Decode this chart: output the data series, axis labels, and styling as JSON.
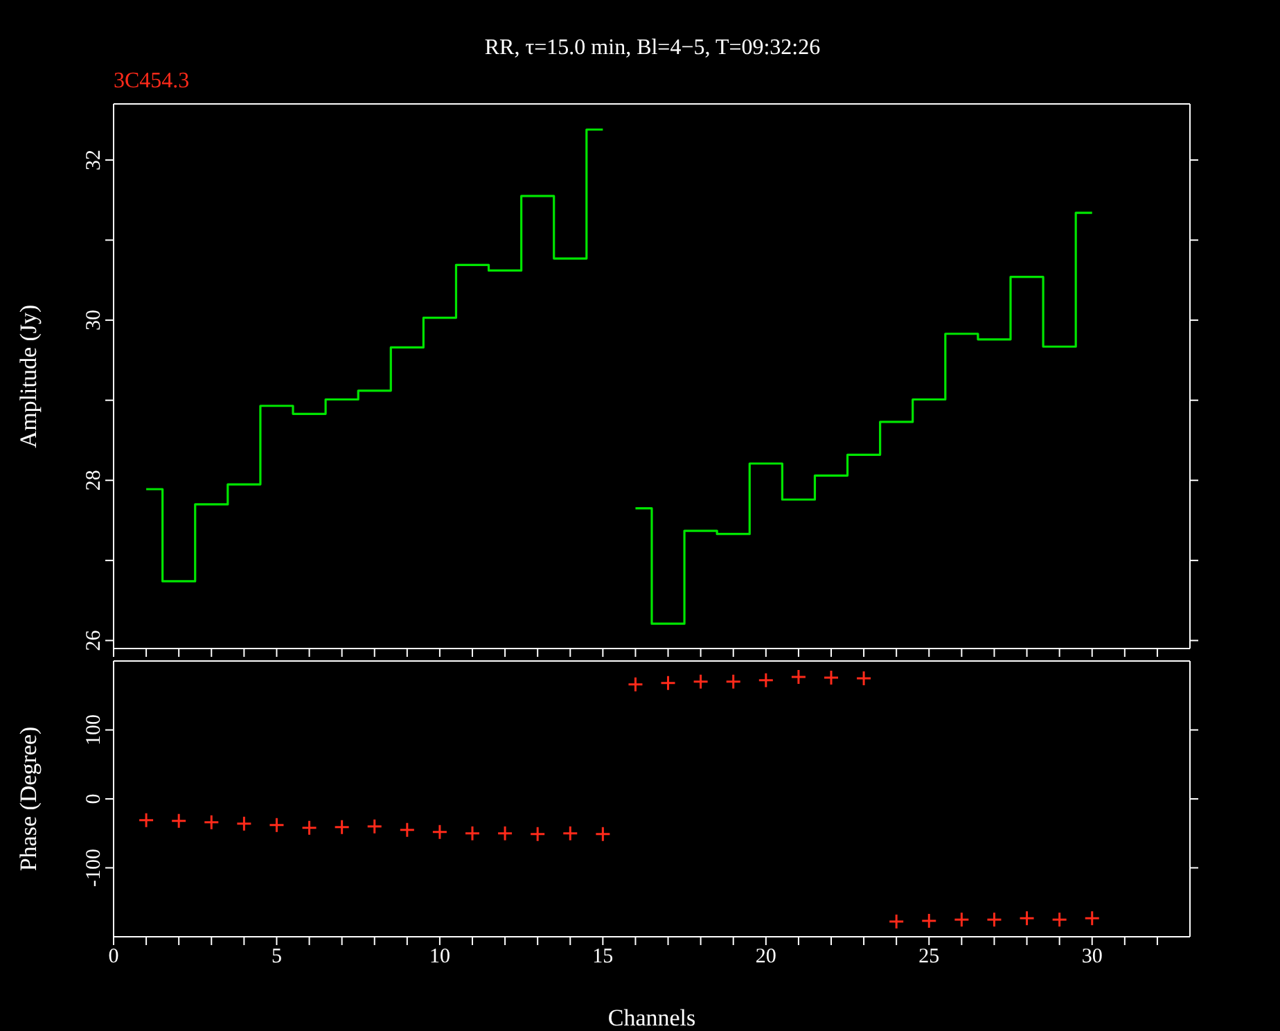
{
  "chart_data": [
    {
      "type": "step",
      "title": "RR, τ=15.0 min, Bl=4−5, T=09:32:26",
      "subtitle": "3C454.3",
      "ylabel": "Amplitude (Jy)",
      "xlim": [
        0,
        33
      ],
      "xticks": [
        {
          "value": 0,
          "label": null
        },
        {
          "value": 1,
          "label": null
        },
        {
          "value": 2,
          "label": null
        },
        {
          "value": 3,
          "label": null
        },
        {
          "value": 4,
          "label": null
        },
        {
          "value": 5,
          "label": null
        },
        {
          "value": 6,
          "label": null
        },
        {
          "value": 7,
          "label": null
        },
        {
          "value": 8,
          "label": null
        },
        {
          "value": 9,
          "label": null
        },
        {
          "value": 10,
          "label": null
        },
        {
          "value": 11,
          "label": null
        },
        {
          "value": 12,
          "label": null
        },
        {
          "value": 13,
          "label": null
        },
        {
          "value": 14,
          "label": null
        },
        {
          "value": 15,
          "label": null
        },
        {
          "value": 16,
          "label": null
        },
        {
          "value": 17,
          "label": null
        },
        {
          "value": 18,
          "label": null
        },
        {
          "value": 19,
          "label": null
        },
        {
          "value": 20,
          "label": null
        },
        {
          "value": 21,
          "label": null
        },
        {
          "value": 22,
          "label": null
        },
        {
          "value": 23,
          "label": null
        },
        {
          "value": 24,
          "label": null
        },
        {
          "value": 25,
          "label": null
        },
        {
          "value": 26,
          "label": null
        },
        {
          "value": 27,
          "label": null
        },
        {
          "value": 28,
          "label": null
        },
        {
          "value": 29,
          "label": null
        },
        {
          "value": 30,
          "label": null
        },
        {
          "value": 31,
          "label": null
        },
        {
          "value": 32,
          "label": null
        }
      ],
      "ylim": [
        25.9,
        32.7
      ],
      "yticks": [
        26,
        {
          "value": 27,
          "label": null
        },
        28,
        {
          "value": 29,
          "label": null
        },
        30,
        {
          "value": 31,
          "label": null
        },
        32
      ],
      "tick_labels": "y",
      "marker": "none",
      "series": [
        {
          "color": "#00e600",
          "x": [
            1,
            2,
            3,
            4,
            5,
            6,
            7,
            8,
            9,
            10,
            11,
            12,
            13,
            14,
            15
          ],
          "values": [
            27.89,
            26.74,
            27.7,
            27.95,
            28.93,
            28.83,
            29.01,
            29.12,
            29.66,
            30.03,
            30.69,
            30.62,
            31.55,
            30.77,
            32.38
          ]
        },
        {
          "color": "#00e600",
          "x": [
            16,
            17,
            18,
            19,
            20,
            21,
            22,
            23,
            24,
            25,
            26,
            27,
            28,
            29,
            30
          ],
          "values": [
            27.65,
            26.21,
            27.37,
            27.33,
            28.21,
            27.76,
            28.06,
            28.32,
            28.73,
            29.01,
            29.83,
            29.76,
            30.54,
            29.67,
            31.34
          ]
        }
      ]
    },
    {
      "type": "scatter",
      "xlabel": "Channels",
      "ylabel": "Phase (Degree)",
      "xlim": [
        0,
        33
      ],
      "xticks": [
        0,
        {
          "value": 1,
          "label": null
        },
        {
          "value": 2,
          "label": null
        },
        {
          "value": 3,
          "label": null
        },
        {
          "value": 4,
          "label": null
        },
        5,
        {
          "value": 6,
          "label": null
        },
        {
          "value": 7,
          "label": null
        },
        {
          "value": 8,
          "label": null
        },
        {
          "value": 9,
          "label": null
        },
        10,
        {
          "value": 11,
          "label": null
        },
        {
          "value": 12,
          "label": null
        },
        {
          "value": 13,
          "label": null
        },
        {
          "value": 14,
          "label": null
        },
        15,
        {
          "value": 16,
          "label": null
        },
        {
          "value": 17,
          "label": null
        },
        {
          "value": 18,
          "label": null
        },
        {
          "value": 19,
          "label": null
        },
        20,
        {
          "value": 21,
          "label": null
        },
        {
          "value": 22,
          "label": null
        },
        {
          "value": 23,
          "label": null
        },
        {
          "value": 24,
          "label": null
        },
        25,
        {
          "value": 26,
          "label": null
        },
        {
          "value": 27,
          "label": null
        },
        {
          "value": 28,
          "label": null
        },
        {
          "value": 29,
          "label": null
        },
        30,
        {
          "value": 31,
          "label": null
        },
        {
          "value": 32,
          "label": null
        }
      ],
      "ylim": [
        -200,
        200
      ],
      "yticks": [
        -100,
        0,
        100
      ],
      "marker": "cross",
      "series": [
        {
          "color": "#ff2a1a",
          "x": [
            1,
            2,
            3,
            4,
            5,
            6,
            7,
            8,
            9,
            10,
            11,
            12,
            13,
            14,
            15,
            16,
            17,
            18,
            19,
            20,
            21,
            22,
            23,
            24,
            25,
            26,
            27,
            28,
            29,
            30
          ],
          "values": [
            -31,
            -32,
            -34,
            -36,
            -38,
            -42,
            -41,
            -40,
            -45,
            -48,
            -50,
            -50,
            -51,
            -50,
            -51,
            166,
            168,
            170,
            170,
            172,
            177,
            176,
            175,
            -178,
            -177,
            -175,
            -175,
            -173,
            -175,
            -173
          ]
        }
      ]
    }
  ]
}
